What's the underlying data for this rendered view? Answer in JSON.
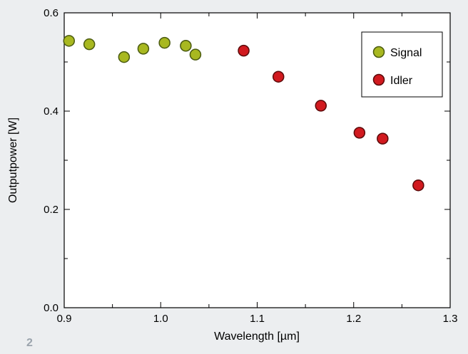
{
  "page_number": "2",
  "chart_data": {
    "type": "scatter",
    "xlabel": "Wavelength [µm]",
    "ylabel": "Outputpower [W]",
    "xlim": [
      0.9,
      1.3
    ],
    "ylim": [
      0.0,
      0.6
    ],
    "x_ticks": [
      "0.9",
      "1.0",
      "1.1",
      "1.2",
      "1.3"
    ],
    "y_ticks": [
      "0.0",
      "0.2",
      "0.4",
      "0.6"
    ],
    "grid": false,
    "legend_position": "top-right",
    "series": [
      {
        "name": "Signal",
        "color": "#a8b820",
        "x": [
          0.905,
          0.926,
          0.962,
          0.982,
          1.004,
          1.026,
          1.036
        ],
        "y": [
          0.543,
          0.536,
          0.51,
          0.527,
          0.539,
          0.533,
          0.515
        ]
      },
      {
        "name": "Idler",
        "color": "#d11a1f",
        "x": [
          1.086,
          1.122,
          1.166,
          1.206,
          1.23,
          1.267
        ],
        "y": [
          0.523,
          0.47,
          0.411,
          0.356,
          0.344,
          0.249
        ]
      }
    ]
  }
}
